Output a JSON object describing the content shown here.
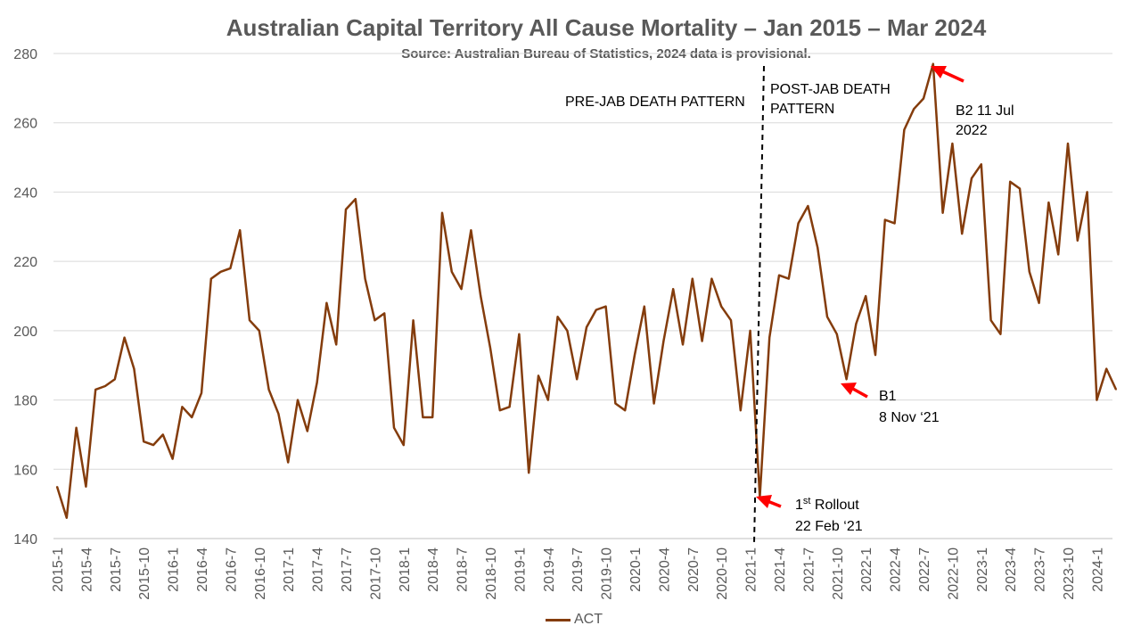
{
  "title": "Australian Capital Territory All Cause Mortality  – Jan 2015 – Mar 2024",
  "subtitle": "Source: Australian Bureau of Statistics, 2024 data is provisional.",
  "colors": {
    "line": "#843c0c",
    "arrow": "#ff0000",
    "grid": "#d9d9d9",
    "text": "#595959"
  },
  "annotations": {
    "pre_jab": "PRE-JAB DEATH PATTERN",
    "post_jab_1": "POST-JAB DEATH",
    "post_jab_2": "PATTERN",
    "b2_1": "B2  11 Jul",
    "b2_2": " 2022",
    "b1_1": "B1",
    "b1_2": "8 Nov ‘21",
    "rollout_prefix": "1",
    "rollout_sup": "st",
    "rollout_suffix": " Rollout",
    "rollout_date": "22 Feb ‘21"
  },
  "chart_data": {
    "type": "line",
    "title": "Australian Capital Territory All Cause Mortality  – Jan 2015 – Mar 2024",
    "subtitle": "Source: Australian Bureau of Statistics, 2024 data is provisional.",
    "xlabel": "",
    "ylabel": "",
    "ylim": [
      140,
      280
    ],
    "yticks": [
      140,
      160,
      180,
      200,
      220,
      240,
      260,
      280
    ],
    "grid": true,
    "legend_position": "bottom",
    "x_tick_labels": [
      "2015-1",
      "2015-4",
      "2015-7",
      "2015-10",
      "2016-1",
      "2016-4",
      "2016-7",
      "2016-10",
      "2017-1",
      "2017-4",
      "2017-7",
      "2017-10",
      "2018-1",
      "2018-4",
      "2018-7",
      "2018-10",
      "2019-1",
      "2019-4",
      "2019-7",
      "2019-10",
      "2020-1",
      "2020-4",
      "2020-7",
      "2020-10",
      "2021-1",
      "2021-4",
      "2021-7",
      "2021-10",
      "2022-1",
      "2022-4",
      "2022-7",
      "2022-10",
      "2023-1",
      "2023-4",
      "2023-7",
      "2023-10",
      "2024-1"
    ],
    "series": [
      {
        "name": "ACT",
        "values": [
          155,
          146,
          172,
          155,
          183,
          184,
          186,
          198,
          189,
          168,
          167,
          170,
          163,
          178,
          175,
          182,
          215,
          217,
          218,
          229,
          203,
          200,
          183,
          176,
          162,
          180,
          171,
          185,
          208,
          196,
          235,
          238,
          215,
          203,
          205,
          172,
          167,
          203,
          175,
          175,
          234,
          217,
          212,
          229,
          210,
          195,
          177,
          178,
          199,
          159,
          187,
          180,
          204,
          200,
          186,
          201,
          206,
          207,
          179,
          177,
          193,
          207,
          179,
          197,
          212,
          196,
          215,
          197,
          215,
          207,
          203,
          177,
          200,
          152,
          198,
          216,
          215,
          231,
          236,
          224,
          204,
          199,
          186,
          202,
          210,
          193,
          232,
          231,
          258,
          264,
          267,
          277,
          234,
          254,
          228,
          244,
          248,
          203,
          199,
          243,
          241,
          217,
          208,
          237,
          222,
          254,
          226,
          240,
          180,
          189,
          183
        ]
      }
    ]
  },
  "legend": {
    "label": "ACT"
  }
}
